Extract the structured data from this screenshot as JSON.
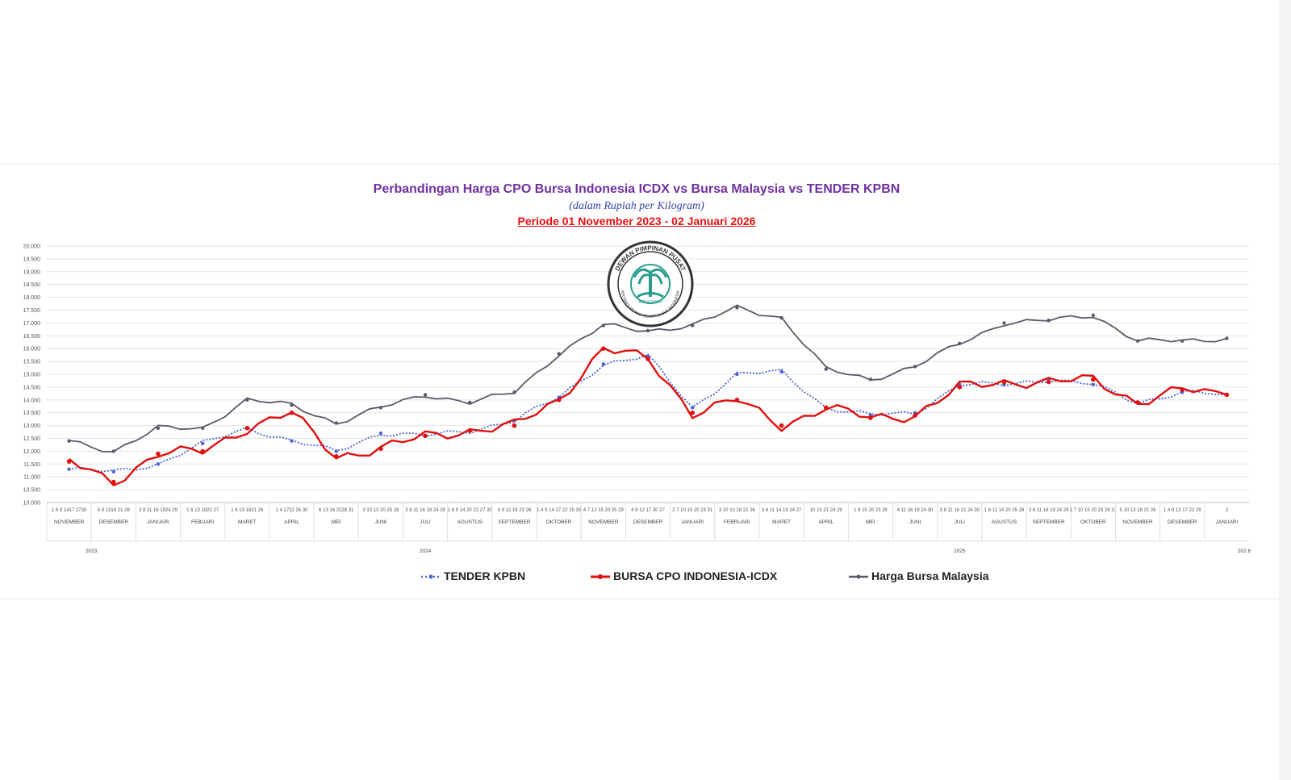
{
  "colors": {
    "tender": "#4a63d0",
    "icdx": "#e01010",
    "malaysia": "#5a5a6a",
    "title": "#7030a0",
    "period": "#e81010"
  },
  "chart_data": {
    "type": "line",
    "title": "Perbandingan Harga CPO Bursa Indonesia ICDX vs Bursa Malaysia vs TENDER KPBN",
    "subtitle": "(dalam Rupiah per Kilogram)",
    "period": "Periode 01 November 2023 - 02 Januari 2026",
    "ylim": [
      10000,
      20000
    ],
    "yticks": [
      "10.000",
      "10.500",
      "11.000",
      "11.500",
      "12.000",
      "12.500",
      "13.000",
      "13.500",
      "14.000",
      "14.500",
      "15.000",
      "15.500",
      "16.000",
      "16.500",
      "17.000",
      "17.500",
      "18.000",
      "18.500",
      "19.000",
      "19.500",
      "20.000"
    ],
    "grid": true,
    "legend_position": "bottom",
    "months": [
      "NOVEMBER",
      "DESEMBER",
      "JANUARI",
      "FEBUARI",
      "MARET",
      "APRIL",
      "MEI",
      "JUNI",
      "JULI",
      "AGUSTUS",
      "SEPTEMBER",
      "OKTOBER",
      "NOVEMBER",
      "DESEMBER",
      "JANUARI",
      "FEBRUARI",
      "MARET",
      "APRIL",
      "MEI",
      "JUNI",
      "JULI",
      "AGUSTUS",
      "SEPTEMBER",
      "OKTOBER",
      "NOVEMBER",
      "DESEMBER",
      "JANUARI"
    ],
    "day_ticks": [
      "1 6 9 1417 2730",
      "5 8 1318 21 28",
      "3 8 11 16 1924 29",
      "1 6 13 1922 27",
      "1 6 13 1821 26",
      "1 4 1722 25 30",
      "6 13 16 2228 31",
      "3 10 13 20 25 28",
      "3 8 11 16 19 24 29",
      "1 6 9 14 20 22 27 30",
      "4 9 12 18 23 26",
      "1 4 9 14 17 22 25 30",
      "4 7 12 15 20 25 29",
      "4 9 12 17 20 27",
      "2 7 10 15 20 23 31",
      "3 10 13 18 21 26",
      "3 6 11 14 19 24 27",
      "10 15 21 24 29",
      "1 8 15 20 23 28",
      "4 11 16 19 24 30",
      "3 8 11 16 21 24 30",
      "1 6 11 14 20 25 28",
      "2 8 11 16 19 24 29",
      "2 7 10 15 20 23 28 31",
      "5 10 13 18 21 26",
      "1 4 9 12 17 22 29",
      "2"
    ],
    "years": [
      "2023",
      "2024",
      "2025",
      "202 6"
    ],
    "x": [
      "2023-11",
      "2023-12",
      "2024-01",
      "2024-02",
      "2024-03",
      "2024-04",
      "2024-05",
      "2024-06",
      "2024-07",
      "2024-08",
      "2024-09",
      "2024-10",
      "2024-11",
      "2024-12",
      "2025-01",
      "2025-02",
      "2025-03",
      "2025-04",
      "2025-05",
      "2025-06",
      "2025-07",
      "2025-08",
      "2025-09",
      "2025-10",
      "2025-11",
      "2025-12",
      "2026-01"
    ],
    "series": [
      {
        "name": "TENDER KPBN",
        "key": "tender",
        "values": [
          11300,
          11200,
          11500,
          12300,
          12900,
          12400,
          12000,
          12700,
          12600,
          12800,
          13200,
          14100,
          15400,
          15700,
          13700,
          15000,
          15100,
          13700,
          13400,
          13500,
          14600,
          14600,
          14800,
          14600,
          13900,
          14300,
          14200
        ]
      },
      {
        "name": "BURSA CPO INDONESIA-ICDX",
        "key": "icdx",
        "values": [
          11600,
          10800,
          11900,
          12000,
          12900,
          13500,
          11800,
          12100,
          12600,
          12800,
          13000,
          14000,
          16000,
          15600,
          13500,
          14000,
          13000,
          13700,
          13300,
          13400,
          14500,
          14700,
          14700,
          14800,
          13900,
          14400,
          14200
        ]
      },
      {
        "name": "Harga Bursa Malaysia",
        "key": "malaysia",
        "values": [
          12400,
          12000,
          12900,
          12900,
          14000,
          13800,
          13100,
          13700,
          14200,
          13900,
          14300,
          15800,
          16900,
          16700,
          16900,
          17600,
          17200,
          15200,
          14800,
          15300,
          16200,
          17000,
          17100,
          17300,
          16300,
          16300,
          16400
        ]
      }
    ]
  }
}
